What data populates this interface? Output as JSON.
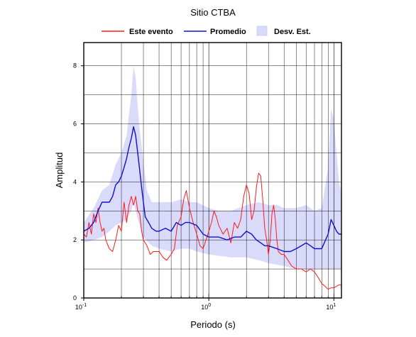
{
  "chart_data": {
    "type": "line",
    "title": "Sitio CTBA",
    "xlabel": "Periodo (s)",
    "ylabel": "Amplitud",
    "x_scale": "log",
    "xlim": [
      0.1,
      11.5
    ],
    "ylim": [
      0,
      8.8
    ],
    "grid": true,
    "legend_position": "top",
    "x_ticks": [
      {
        "value": 0.1,
        "base": "10",
        "exp": "-1"
      },
      {
        "value": 1,
        "base": "10",
        "exp": "0"
      },
      {
        "value": 10,
        "base": "10",
        "exp": "1"
      }
    ],
    "y_ticks": [
      {
        "value": 0,
        "label": "0"
      },
      {
        "value": 2,
        "label": "2"
      },
      {
        "value": 4,
        "label": "4"
      },
      {
        "value": 6,
        "label": "6"
      },
      {
        "value": 8,
        "label": "8"
      }
    ],
    "series": [
      {
        "name": "Este evento",
        "color": "#ff1a1a",
        "points": [
          [
            0.1,
            2.2
          ],
          [
            0.105,
            2.1
          ],
          [
            0.11,
            2.6
          ],
          [
            0.115,
            2.2
          ],
          [
            0.12,
            2.9
          ],
          [
            0.125,
            2.6
          ],
          [
            0.13,
            3.1
          ],
          [
            0.135,
            2.6
          ],
          [
            0.14,
            2.3
          ],
          [
            0.145,
            2.4
          ],
          [
            0.15,
            2.0
          ],
          [
            0.16,
            1.7
          ],
          [
            0.17,
            1.6
          ],
          [
            0.18,
            2.0
          ],
          [
            0.19,
            2.5
          ],
          [
            0.2,
            2.3
          ],
          [
            0.21,
            3.3
          ],
          [
            0.22,
            2.6
          ],
          [
            0.23,
            3.2
          ],
          [
            0.24,
            3.5
          ],
          [
            0.25,
            3.2
          ],
          [
            0.26,
            3.5
          ],
          [
            0.27,
            3.0
          ],
          [
            0.28,
            2.9
          ],
          [
            0.29,
            2.3
          ],
          [
            0.3,
            2.0
          ],
          [
            0.32,
            1.8
          ],
          [
            0.34,
            1.5
          ],
          [
            0.36,
            1.6
          ],
          [
            0.38,
            1.6
          ],
          [
            0.4,
            1.6
          ],
          [
            0.43,
            1.4
          ],
          [
            0.46,
            1.3
          ],
          [
            0.5,
            1.5
          ],
          [
            0.53,
            1.7
          ],
          [
            0.56,
            2.5
          ],
          [
            0.6,
            2.8
          ],
          [
            0.63,
            3.4
          ],
          [
            0.66,
            3.7
          ],
          [
            0.7,
            3.1
          ],
          [
            0.75,
            2.6
          ],
          [
            0.8,
            2.2
          ],
          [
            0.85,
            1.8
          ],
          [
            0.9,
            1.7
          ],
          [
            0.95,
            2.0
          ],
          [
            1.0,
            2.3
          ],
          [
            1.05,
            2.6
          ],
          [
            1.1,
            3.0
          ],
          [
            1.15,
            2.8
          ],
          [
            1.2,
            2.5
          ],
          [
            1.3,
            2.2
          ],
          [
            1.4,
            2.4
          ],
          [
            1.5,
            1.9
          ],
          [
            1.6,
            2.6
          ],
          [
            1.7,
            2.4
          ],
          [
            1.8,
            2.7
          ],
          [
            1.9,
            3.5
          ],
          [
            2.0,
            3.9
          ],
          [
            2.1,
            3.6
          ],
          [
            2.2,
            2.7
          ],
          [
            2.3,
            3.0
          ],
          [
            2.4,
            3.8
          ],
          [
            2.5,
            4.3
          ],
          [
            2.6,
            4.2
          ],
          [
            2.7,
            3.4
          ],
          [
            2.8,
            2.4
          ],
          [
            2.9,
            2.0
          ],
          [
            3.0,
            1.5
          ],
          [
            3.1,
            2.0
          ],
          [
            3.2,
            2.9
          ],
          [
            3.3,
            3.2
          ],
          [
            3.4,
            2.7
          ],
          [
            3.5,
            2.0
          ],
          [
            3.6,
            1.6
          ],
          [
            3.8,
            1.5
          ],
          [
            4.0,
            1.5
          ],
          [
            4.3,
            1.3
          ],
          [
            4.6,
            1.1
          ],
          [
            5.0,
            1.0
          ],
          [
            5.5,
            1.0
          ],
          [
            6.0,
            0.9
          ],
          [
            6.5,
            1.0
          ],
          [
            7.0,
            0.9
          ],
          [
            7.5,
            0.7
          ],
          [
            8.0,
            0.5
          ],
          [
            8.5,
            0.4
          ],
          [
            9.0,
            0.3
          ],
          [
            9.5,
            0.35
          ],
          [
            10.0,
            0.35
          ],
          [
            10.5,
            0.4
          ],
          [
            11.0,
            0.45
          ],
          [
            11.5,
            0.45
          ]
        ]
      },
      {
        "name": "Promedio",
        "color": "#1010d0",
        "points": [
          [
            0.1,
            2.3
          ],
          [
            0.11,
            2.4
          ],
          [
            0.12,
            2.6
          ],
          [
            0.13,
            3.0
          ],
          [
            0.14,
            3.3
          ],
          [
            0.15,
            3.3
          ],
          [
            0.16,
            3.3
          ],
          [
            0.17,
            3.5
          ],
          [
            0.18,
            3.9
          ],
          [
            0.19,
            4.0
          ],
          [
            0.2,
            4.2
          ],
          [
            0.21,
            4.5
          ],
          [
            0.22,
            4.8
          ],
          [
            0.23,
            5.2
          ],
          [
            0.24,
            5.5
          ],
          [
            0.25,
            5.9
          ],
          [
            0.26,
            5.6
          ],
          [
            0.27,
            5.0
          ],
          [
            0.28,
            4.4
          ],
          [
            0.29,
            3.8
          ],
          [
            0.3,
            3.3
          ],
          [
            0.31,
            2.8
          ],
          [
            0.33,
            2.6
          ],
          [
            0.35,
            2.4
          ],
          [
            0.38,
            2.3
          ],
          [
            0.4,
            2.3
          ],
          [
            0.45,
            2.4
          ],
          [
            0.5,
            2.3
          ],
          [
            0.55,
            2.6
          ],
          [
            0.6,
            2.5
          ],
          [
            0.65,
            2.6
          ],
          [
            0.7,
            2.6
          ],
          [
            0.8,
            2.5
          ],
          [
            0.9,
            2.2
          ],
          [
            1.0,
            2.1
          ],
          [
            1.2,
            2.1
          ],
          [
            1.4,
            2.0
          ],
          [
            1.6,
            2.1
          ],
          [
            1.8,
            2.1
          ],
          [
            2.0,
            2.3
          ],
          [
            2.2,
            2.2
          ],
          [
            2.4,
            2.0
          ],
          [
            2.6,
            1.9
          ],
          [
            2.8,
            1.8
          ],
          [
            3.0,
            1.8
          ],
          [
            3.5,
            1.7
          ],
          [
            4.0,
            1.6
          ],
          [
            4.5,
            1.6
          ],
          [
            5.0,
            1.7
          ],
          [
            5.5,
            1.8
          ],
          [
            6.0,
            1.9
          ],
          [
            6.5,
            1.8
          ],
          [
            7.0,
            1.7
          ],
          [
            8.0,
            1.7
          ],
          [
            9.0,
            2.2
          ],
          [
            9.5,
            2.7
          ],
          [
            10.0,
            2.5
          ],
          [
            10.5,
            2.3
          ],
          [
            11.0,
            2.2
          ],
          [
            11.5,
            2.2
          ]
        ]
      },
      {
        "name": "Desv. Est.",
        "type": "area",
        "color": "#dadafa",
        "points_upper": [
          [
            0.1,
            2.6
          ],
          [
            0.12,
            3.1
          ],
          [
            0.14,
            3.7
          ],
          [
            0.16,
            3.9
          ],
          [
            0.18,
            4.6
          ],
          [
            0.2,
            5.0
          ],
          [
            0.22,
            5.6
          ],
          [
            0.24,
            7.0
          ],
          [
            0.25,
            8.0
          ],
          [
            0.26,
            7.6
          ],
          [
            0.27,
            6.6
          ],
          [
            0.28,
            5.8
          ],
          [
            0.3,
            4.7
          ],
          [
            0.32,
            3.7
          ],
          [
            0.35,
            3.3
          ],
          [
            0.4,
            3.3
          ],
          [
            0.5,
            3.3
          ],
          [
            0.6,
            3.4
          ],
          [
            0.7,
            3.3
          ],
          [
            0.8,
            3.3
          ],
          [
            1.0,
            3.1
          ],
          [
            1.2,
            3.0
          ],
          [
            1.5,
            3.0
          ],
          [
            2.0,
            3.2
          ],
          [
            2.5,
            3.3
          ],
          [
            3.0,
            3.2
          ],
          [
            3.5,
            3.2
          ],
          [
            4.0,
            3.1
          ],
          [
            5.0,
            3.1
          ],
          [
            6.0,
            3.2
          ],
          [
            7.0,
            3.0
          ],
          [
            8.0,
            3.1
          ],
          [
            9.0,
            4.5
          ],
          [
            9.5,
            6.5
          ],
          [
            10.0,
            6.2
          ],
          [
            10.5,
            5.0
          ],
          [
            11.0,
            4.0
          ],
          [
            11.5,
            3.6
          ]
        ],
        "points_lower": [
          [
            0.1,
            1.9
          ],
          [
            0.12,
            2.0
          ],
          [
            0.14,
            2.1
          ],
          [
            0.16,
            2.3
          ],
          [
            0.18,
            2.5
          ],
          [
            0.2,
            2.6
          ],
          [
            0.22,
            2.7
          ],
          [
            0.24,
            3.0
          ],
          [
            0.25,
            3.3
          ],
          [
            0.26,
            3.0
          ],
          [
            0.28,
            2.5
          ],
          [
            0.3,
            2.1
          ],
          [
            0.35,
            1.8
          ],
          [
            0.4,
            1.7
          ],
          [
            0.5,
            1.6
          ],
          [
            0.6,
            1.7
          ],
          [
            0.7,
            1.7
          ],
          [
            0.8,
            1.6
          ],
          [
            1.0,
            1.5
          ],
          [
            1.5,
            1.4
          ],
          [
            2.0,
            1.4
          ],
          [
            2.5,
            1.3
          ],
          [
            3.0,
            1.2
          ],
          [
            4.0,
            1.1
          ],
          [
            5.0,
            1.0
          ],
          [
            6.0,
            1.0
          ],
          [
            7.0,
            1.0
          ],
          [
            8.0,
            1.0
          ],
          [
            9.0,
            1.0
          ],
          [
            10.0,
            1.0
          ],
          [
            11.0,
            1.0
          ],
          [
            11.5,
            1.0
          ]
        ]
      }
    ]
  }
}
